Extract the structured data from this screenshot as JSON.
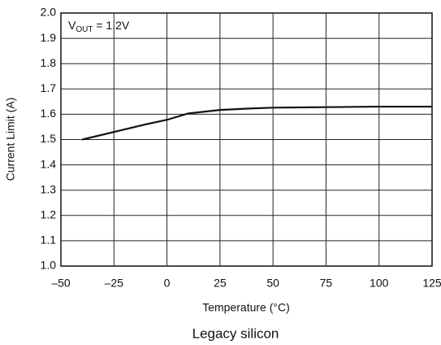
{
  "chart_data": {
    "type": "line",
    "annotation": {
      "main": "V",
      "sub": "OUT",
      "rest": " = 1.2V"
    },
    "x_label": "Temperature (°C)",
    "y_label": "Current Limit (A)",
    "caption": "Legacy silicon",
    "x": [
      -40,
      -25,
      -10,
      0,
      10,
      25,
      40,
      50,
      75,
      100,
      125
    ],
    "series": [
      {
        "name": null,
        "color": "#111111",
        "values": [
          1.5,
          1.53,
          1.56,
          1.578,
          1.603,
          1.617,
          1.623,
          1.626,
          1.628,
          1.63,
          1.63
        ]
      }
    ],
    "xlim": [
      -50,
      125
    ],
    "xticks": [
      {
        "value": -50,
        "label": "–50"
      },
      {
        "value": -25,
        "label": "–25"
      },
      0,
      25,
      50,
      75,
      100,
      125
    ],
    "ylim": [
      1,
      2
    ],
    "yticks": [
      {
        "value": 1,
        "label": "1.0"
      },
      1.1,
      1.2,
      1.3,
      1.4,
      1.5,
      1.6,
      1.7,
      1.8,
      1.9,
      {
        "value": 2,
        "label": "2.0"
      }
    ],
    "grid": true
  }
}
